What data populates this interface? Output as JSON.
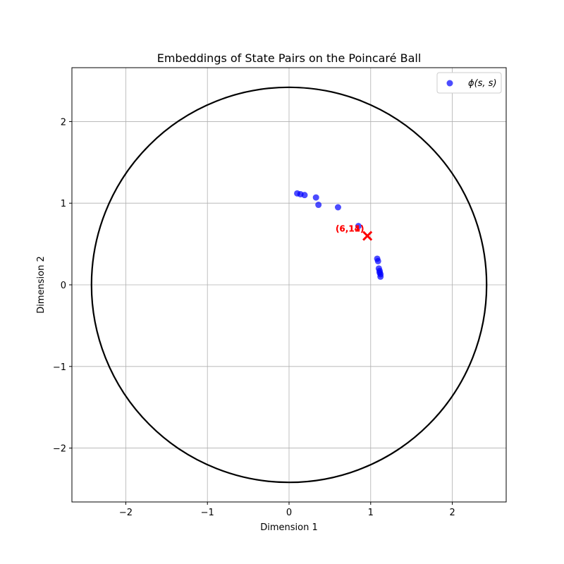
{
  "chart_data": {
    "type": "scatter",
    "title": "Embeddings of State Pairs on the Poincaré Ball",
    "xlabel": "Dimension 1",
    "ylabel": "Dimension 2",
    "xlim": [
      -2.66,
      2.66
    ],
    "ylim": [
      -2.66,
      2.66
    ],
    "xticks": [
      -2,
      -1,
      0,
      1,
      2
    ],
    "yticks": [
      -2,
      -1,
      0,
      1,
      2
    ],
    "xtick_labels": [
      "−2",
      "−1",
      "0",
      "1",
      "2"
    ],
    "ytick_labels": [
      "−2",
      "−1",
      "0",
      "1",
      "2"
    ],
    "grid": true,
    "legend_position": "top-right",
    "boundary_circle": {
      "center": [
        0,
        0
      ],
      "radius": 2.42,
      "color": "#000000"
    },
    "series": [
      {
        "name": "ϕ(s, s)",
        "color": "#0000ff",
        "points": [
          {
            "x": 0.1,
            "y": 1.12
          },
          {
            "x": 0.14,
            "y": 1.11
          },
          {
            "x": 0.19,
            "y": 1.1
          },
          {
            "x": 0.33,
            "y": 1.07
          },
          {
            "x": 0.36,
            "y": 0.98
          },
          {
            "x": 0.6,
            "y": 0.95
          },
          {
            "x": 0.85,
            "y": 0.72
          },
          {
            "x": 1.08,
            "y": 0.32
          },
          {
            "x": 1.09,
            "y": 0.29
          },
          {
            "x": 1.1,
            "y": 0.2
          },
          {
            "x": 1.11,
            "y": 0.17
          },
          {
            "x": 1.11,
            "y": 0.15
          },
          {
            "x": 1.12,
            "y": 0.13
          },
          {
            "x": 1.12,
            "y": 0.1
          }
        ]
      }
    ],
    "markers": [
      {
        "x": 0.96,
        "y": 0.6,
        "symbol": "x",
        "color": "#ff0000"
      }
    ],
    "annotations": [
      {
        "text": "(6,14)",
        "x": 0.92,
        "y": 0.65,
        "color": "#ff0000"
      },
      {
        "text": "(6,11)",
        "x": 0.92,
        "y": 0.65,
        "color": "#ff0000"
      }
    ]
  }
}
